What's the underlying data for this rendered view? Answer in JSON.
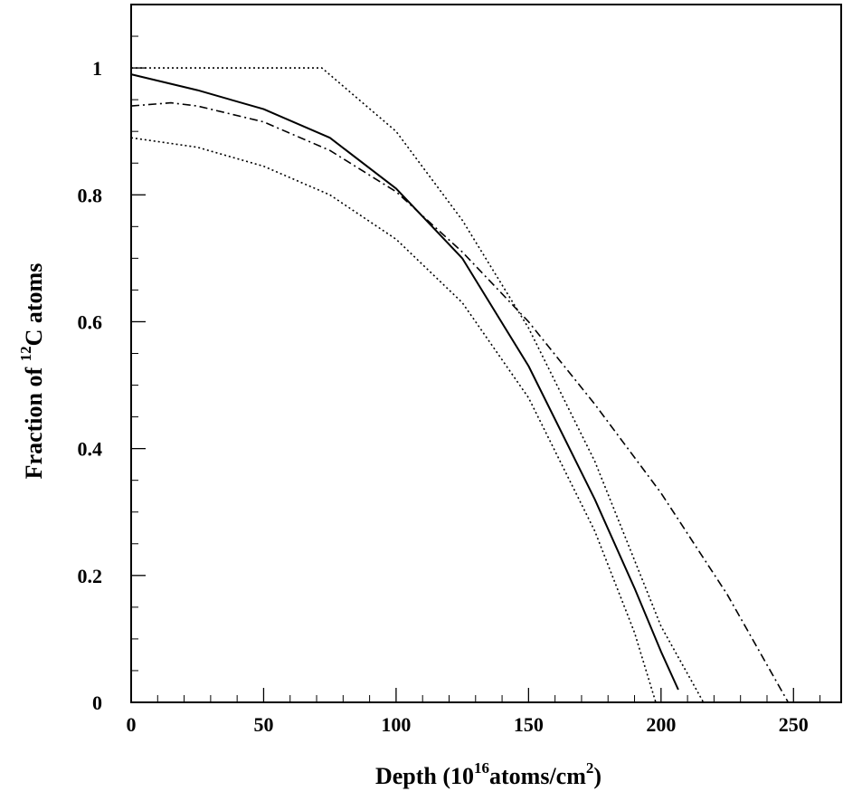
{
  "chart_data": {
    "type": "line",
    "xlabel": {
      "prefix": "Depth (10",
      "sup1": "16",
      "middle": "atoms/cm",
      "sup2": "2",
      "suffix": ")"
    },
    "ylabel": {
      "prefix": "Fraction of ",
      "sup": "12",
      "suffix": "C atoms"
    },
    "xlim": [
      0,
      268
    ],
    "ylim": [
      0,
      1.1
    ],
    "x_ticks": [
      0,
      50,
      100,
      150,
      200,
      250
    ],
    "y_ticks": [
      0,
      0.2,
      0.4,
      0.6,
      0.8,
      1
    ],
    "x_tick_labels": [
      "0",
      "50",
      "100",
      "150",
      "200",
      "250"
    ],
    "y_tick_labels": [
      "0",
      "0.2",
      "0.4",
      "0.6",
      "0.8",
      "1"
    ],
    "legend": "none",
    "grid": false,
    "series": [
      {
        "style": "solid",
        "color": "#000000",
        "x": [
          0,
          25,
          50,
          75,
          100,
          125,
          150,
          175,
          190,
          200,
          206.5
        ],
        "y": [
          0.99,
          0.965,
          0.935,
          0.89,
          0.81,
          0.7,
          0.53,
          0.32,
          0.18,
          0.08,
          0.02
        ]
      },
      {
        "style": "dashdot",
        "color": "#000000",
        "x": [
          0,
          15,
          25,
          50,
          75,
          100,
          125,
          150,
          175,
          200,
          225,
          248
        ],
        "y": [
          0.94,
          0.945,
          0.94,
          0.915,
          0.87,
          0.805,
          0.71,
          0.6,
          0.47,
          0.33,
          0.17,
          0.0
        ]
      },
      {
        "style": "dotted",
        "color": "#000000",
        "x": [
          0,
          72,
          100,
          125,
          150,
          175,
          200,
          216
        ],
        "y": [
          1.0,
          1.0,
          0.9,
          0.76,
          0.59,
          0.38,
          0.12,
          0.0
        ]
      },
      {
        "style": "dotted",
        "color": "#000000",
        "x": [
          0,
          25,
          50,
          75,
          100,
          125,
          150,
          175,
          190,
          198
        ],
        "y": [
          0.89,
          0.875,
          0.845,
          0.8,
          0.73,
          0.63,
          0.48,
          0.27,
          0.11,
          0.0
        ]
      }
    ]
  }
}
